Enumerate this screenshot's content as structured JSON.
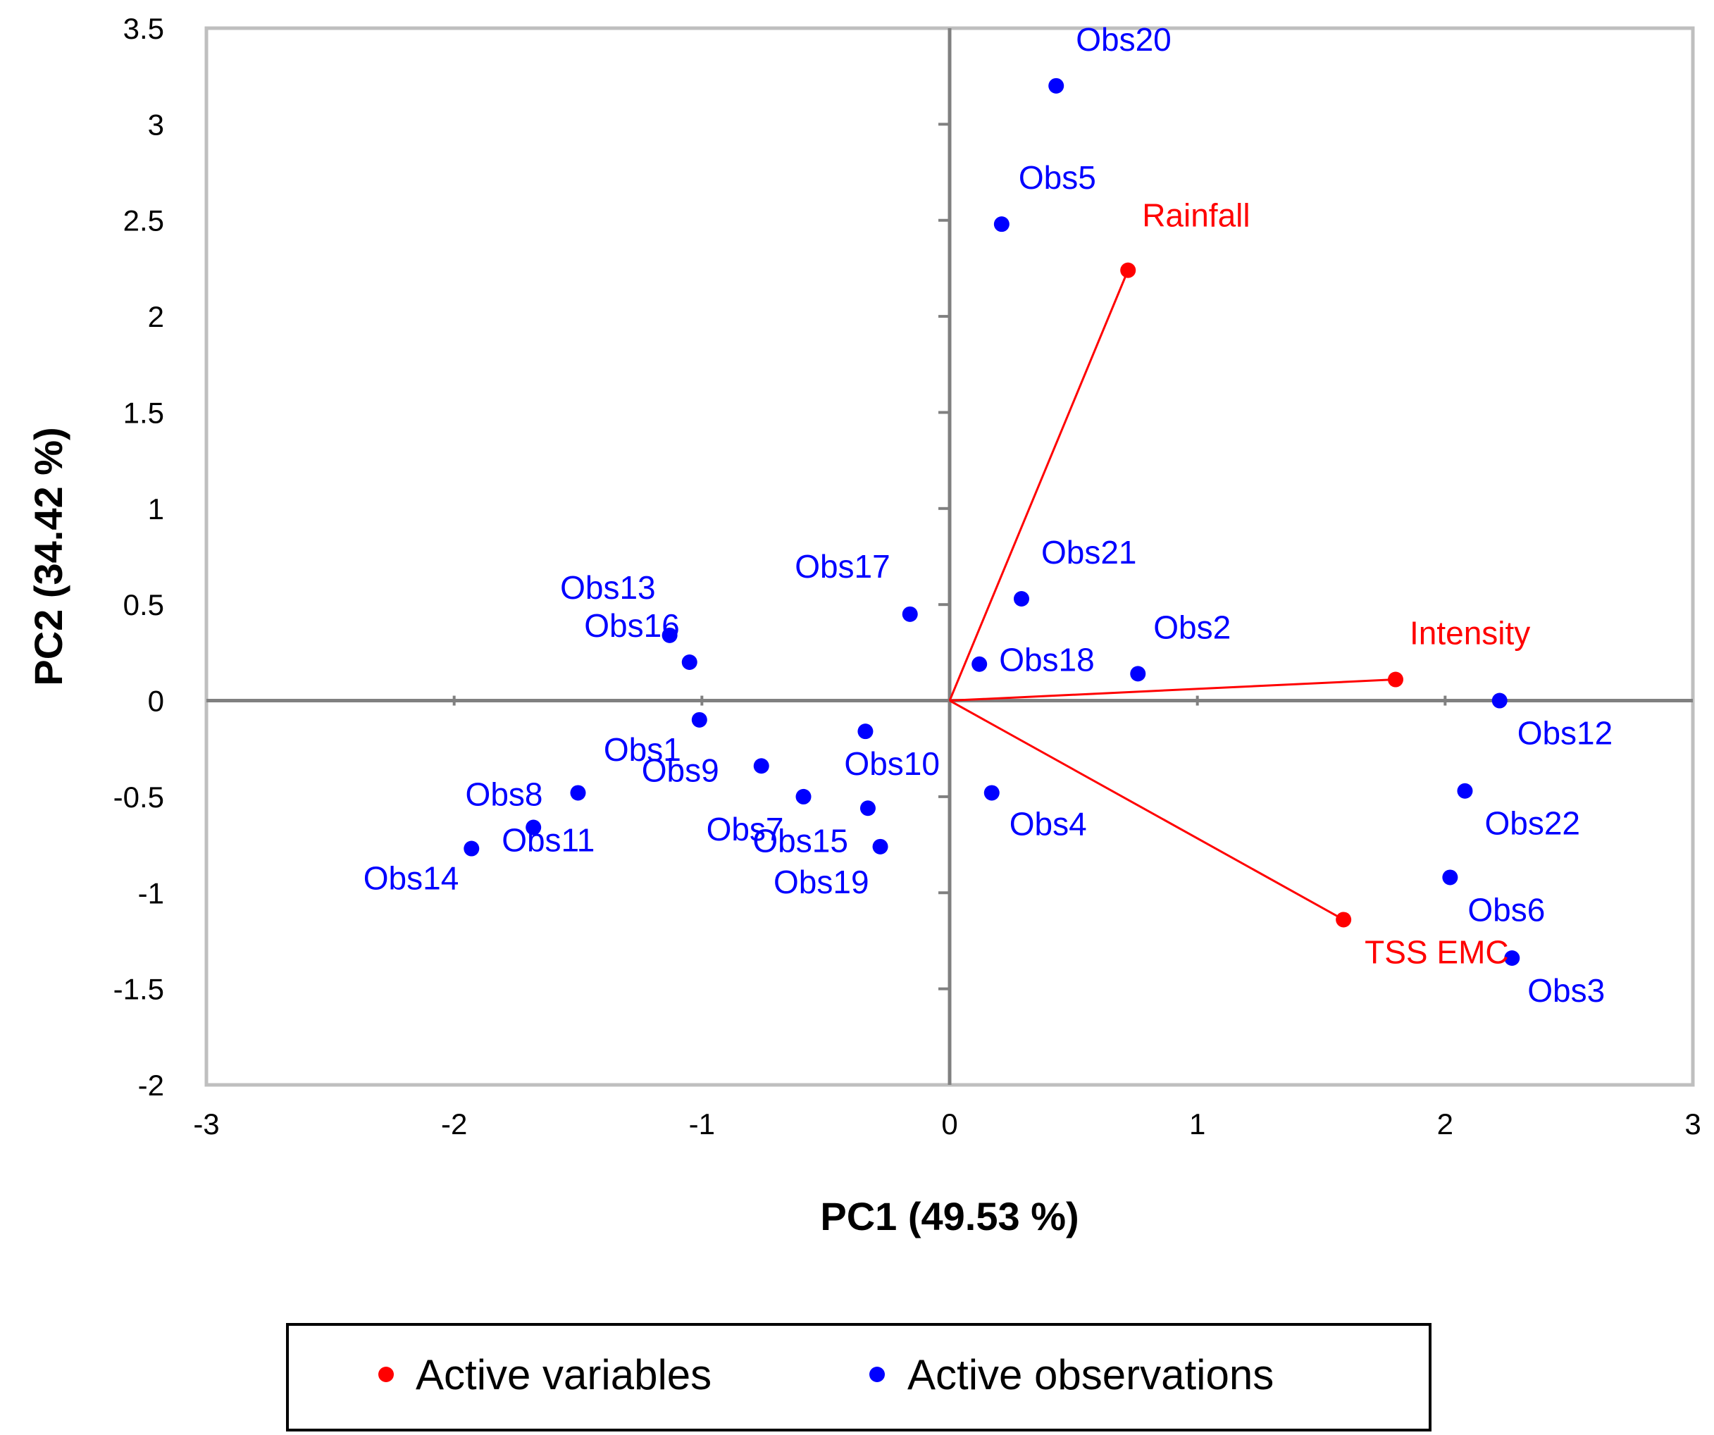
{
  "chart_data": {
    "type": "scatter",
    "title": "",
    "xlabel": "PC1 (49.53 %)",
    "ylabel": "PC2 (34.42 %)",
    "xlim": [
      -3,
      3
    ],
    "ylim": [
      -2,
      3.5
    ],
    "xticks": [
      "-3",
      "-2",
      "-1",
      "0",
      "1",
      "2",
      "3"
    ],
    "yticks": [
      "3.5",
      "3",
      "2.5",
      "2",
      "1.5",
      "1",
      "0.5",
      "0",
      "-0.5",
      "-1",
      "-1.5",
      "-2"
    ],
    "grid": false,
    "legend_position": "bottom",
    "colors": {
      "variables": "#ff0000",
      "observations": "#0000ff",
      "axes": "#808080"
    },
    "series": [
      {
        "name": "Active variables",
        "color": "#ff0000",
        "vectors_from_origin": true,
        "points": [
          {
            "label": "Rainfall",
            "x": 0.72,
            "y": 2.24
          },
          {
            "label": "Intensity",
            "x": 1.8,
            "y": 0.11
          },
          {
            "label": "TSS EMC",
            "x": 1.59,
            "y": -1.14
          }
        ]
      },
      {
        "name": "Active observations",
        "color": "#0000ff",
        "points": [
          {
            "label": "Obs20",
            "x": 0.43,
            "y": 3.2
          },
          {
            "label": "Obs5",
            "x": 0.21,
            "y": 2.48
          },
          {
            "label": "Obs21",
            "x": 0.29,
            "y": 0.53
          },
          {
            "label": "Obs18",
            "x": 0.12,
            "y": 0.19
          },
          {
            "label": "Obs2",
            "x": 0.76,
            "y": 0.14
          },
          {
            "label": "Obs17",
            "x": -0.16,
            "y": 0.45
          },
          {
            "label": "Obs13",
            "x": -1.13,
            "y": 0.34
          },
          {
            "label": "Obs16",
            "x": -1.05,
            "y": 0.2
          },
          {
            "label": "Obs1",
            "x": -1.01,
            "y": -0.1
          },
          {
            "label": "Obs10",
            "x": -0.34,
            "y": -0.16
          },
          {
            "label": "Obs9",
            "x": -0.76,
            "y": -0.34
          },
          {
            "label": "Obs7",
            "x": -0.59,
            "y": -0.5
          },
          {
            "label": "Obs15",
            "x": -0.33,
            "y": -0.56
          },
          {
            "label": "Obs19",
            "x": -0.28,
            "y": -0.76
          },
          {
            "label": "Obs8",
            "x": -1.5,
            "y": -0.48
          },
          {
            "label": "Obs11",
            "x": -1.68,
            "y": -0.66
          },
          {
            "label": "Obs14",
            "x": -1.93,
            "y": -0.77
          },
          {
            "label": "Obs4",
            "x": 0.17,
            "y": -0.48
          },
          {
            "label": "Obs12",
            "x": 2.22,
            "y": 0.0
          },
          {
            "label": "Obs22",
            "x": 2.08,
            "y": -0.47
          },
          {
            "label": "Obs6",
            "x": 2.02,
            "y": -0.92
          },
          {
            "label": "Obs3",
            "x": 2.27,
            "y": -1.34
          }
        ]
      }
    ]
  }
}
